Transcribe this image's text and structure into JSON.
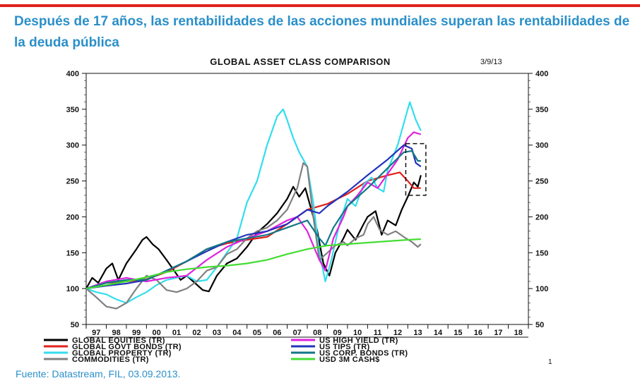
{
  "page": {
    "headline": "Después de 17 años, las rentabilidades de las acciones mundiales superan las rentabilidades de la deuda pública",
    "source": "Fuente: Datastream, FIL, 03.09.2013.",
    "page_number": "1",
    "accent_color": "#e0201b",
    "headline_color": "#2a8fc9"
  },
  "chart_data": {
    "type": "line",
    "title": "GLOBAL ASSET CLASS COMPARISON",
    "date_label": "3/9/13",
    "xlabel": "",
    "ylabel": "",
    "xlim": [
      1997,
      2019
    ],
    "ylim": [
      50,
      400
    ],
    "x_ticks": [
      "97",
      "98",
      "99",
      "00",
      "01",
      "02",
      "03",
      "04",
      "05",
      "06",
      "07",
      "08",
      "09",
      "10",
      "11",
      "12",
      "13",
      "14",
      "15",
      "16",
      "17",
      "18"
    ],
    "y_ticks": [
      50,
      100,
      150,
      200,
      250,
      300,
      350,
      400
    ],
    "grid": false,
    "legend_position": "bottom",
    "highlight_box": {
      "x": [
        2012.9,
        2013.9
      ],
      "y": [
        230,
        302
      ],
      "style": "dashed"
    },
    "series": [
      {
        "name": "GLOBAL EQUITIES (TR)",
        "color": "#000000",
        "points": [
          [
            1997,
            100
          ],
          [
            1997.3,
            115
          ],
          [
            1997.6,
            108
          ],
          [
            1998,
            128
          ],
          [
            1998.3,
            135
          ],
          [
            1998.6,
            112
          ],
          [
            1999,
            135
          ],
          [
            1999.5,
            155
          ],
          [
            1999.8,
            168
          ],
          [
            2000,
            172
          ],
          [
            2000.3,
            162
          ],
          [
            2000.6,
            155
          ],
          [
            2001,
            140
          ],
          [
            2001.3,
            128
          ],
          [
            2001.7,
            112
          ],
          [
            2002,
            118
          ],
          [
            2002.4,
            108
          ],
          [
            2002.8,
            98
          ],
          [
            2003.1,
            96
          ],
          [
            2003.5,
            118
          ],
          [
            2004,
            135
          ],
          [
            2004.5,
            142
          ],
          [
            2005,
            158
          ],
          [
            2005.5,
            178
          ],
          [
            2006,
            190
          ],
          [
            2006.5,
            205
          ],
          [
            2007,
            225
          ],
          [
            2007.3,
            242
          ],
          [
            2007.6,
            228
          ],
          [
            2007.9,
            240
          ],
          [
            2008.2,
            210
          ],
          [
            2008.5,
            180
          ],
          [
            2008.8,
            135
          ],
          [
            2009.1,
            118
          ],
          [
            2009.4,
            150
          ],
          [
            2009.8,
            170
          ],
          [
            2010,
            182
          ],
          [
            2010.4,
            168
          ],
          [
            2010.8,
            190
          ],
          [
            2011,
            200
          ],
          [
            2011.4,
            208
          ],
          [
            2011.7,
            175
          ],
          [
            2012,
            195
          ],
          [
            2012.4,
            188
          ],
          [
            2012.7,
            210
          ],
          [
            2013,
            228
          ],
          [
            2013.3,
            248
          ],
          [
            2013.5,
            242
          ],
          [
            2013.65,
            258
          ]
        ]
      },
      {
        "name": "GLOBAL GOVT BONDS (TR)",
        "color": "#e0201b",
        "points": [
          [
            1997,
            100
          ],
          [
            1998,
            108
          ],
          [
            1999,
            110
          ],
          [
            2000,
            113
          ],
          [
            2001,
            123
          ],
          [
            2002,
            138
          ],
          [
            2003,
            155
          ],
          [
            2004,
            163
          ],
          [
            2005,
            168
          ],
          [
            2006,
            172
          ],
          [
            2007,
            190
          ],
          [
            2008,
            210
          ],
          [
            2009,
            218
          ],
          [
            2010,
            232
          ],
          [
            2011,
            250
          ],
          [
            2012,
            258
          ],
          [
            2012.6,
            262
          ],
          [
            2013,
            250
          ],
          [
            2013.3,
            240
          ],
          [
            2013.65,
            240
          ]
        ]
      },
      {
        "name": "GLOBAL PROPERTY (TR)",
        "color": "#33ddee",
        "points": [
          [
            1997,
            100
          ],
          [
            1997.5,
            95
          ],
          [
            1998,
            92
          ],
          [
            1998.5,
            85
          ],
          [
            1999,
            80
          ],
          [
            1999.5,
            88
          ],
          [
            2000,
            95
          ],
          [
            2000.5,
            105
          ],
          [
            2001,
            112
          ],
          [
            2002,
            118
          ],
          [
            2002.5,
            110
          ],
          [
            2003,
            112
          ],
          [
            2003.5,
            130
          ],
          [
            2004,
            150
          ],
          [
            2004.5,
            170
          ],
          [
            2005,
            220
          ],
          [
            2005.5,
            250
          ],
          [
            2006,
            300
          ],
          [
            2006.5,
            340
          ],
          [
            2006.8,
            350
          ],
          [
            2007,
            335
          ],
          [
            2007.3,
            310
          ],
          [
            2007.6,
            290
          ],
          [
            2008,
            270
          ],
          [
            2008.3,
            220
          ],
          [
            2008.6,
            150
          ],
          [
            2008.9,
            110
          ],
          [
            2009.2,
            140
          ],
          [
            2009.6,
            190
          ],
          [
            2010,
            225
          ],
          [
            2010.4,
            215
          ],
          [
            2010.8,
            245
          ],
          [
            2011.2,
            255
          ],
          [
            2011.5,
            240
          ],
          [
            2011.8,
            235
          ],
          [
            2012,
            265
          ],
          [
            2012.5,
            300
          ],
          [
            2012.9,
            340
          ],
          [
            2013.1,
            360
          ],
          [
            2013.4,
            335
          ],
          [
            2013.65,
            320
          ]
        ]
      },
      {
        "name": "COMMODITIES (TR)",
        "color": "#808080",
        "points": [
          [
            1997,
            100
          ],
          [
            1997.5,
            88
          ],
          [
            1998,
            75
          ],
          [
            1998.5,
            72
          ],
          [
            1999,
            80
          ],
          [
            1999.5,
            100
          ],
          [
            2000,
            118
          ],
          [
            2000.5,
            112
          ],
          [
            2001,
            98
          ],
          [
            2001.5,
            95
          ],
          [
            2002,
            100
          ],
          [
            2002.5,
            110
          ],
          [
            2003,
            125
          ],
          [
            2003.5,
            130
          ],
          [
            2004,
            148
          ],
          [
            2004.5,
            155
          ],
          [
            2005,
            170
          ],
          [
            2005.5,
            180
          ],
          [
            2006,
            185
          ],
          [
            2006.5,
            195
          ],
          [
            2007,
            210
          ],
          [
            2007.5,
            240
          ],
          [
            2007.8,
            275
          ],
          [
            2008,
            270
          ],
          [
            2008.3,
            200
          ],
          [
            2008.6,
            140
          ],
          [
            2009,
            150
          ],
          [
            2009.4,
            160
          ],
          [
            2009.8,
            165
          ],
          [
            2010,
            160
          ],
          [
            2010.4,
            170
          ],
          [
            2010.8,
            175
          ],
          [
            2011,
            190
          ],
          [
            2011.3,
            200
          ],
          [
            2011.6,
            182
          ],
          [
            2012,
            175
          ],
          [
            2012.4,
            180
          ],
          [
            2012.8,
            172
          ],
          [
            2013.2,
            165
          ],
          [
            2013.5,
            158
          ],
          [
            2013.65,
            162
          ]
        ]
      },
      {
        "name": "US HIGH YIELD (TR)",
        "color": "#dd22dd",
        "points": [
          [
            1997,
            100
          ],
          [
            1998,
            110
          ],
          [
            1999,
            115
          ],
          [
            2000,
            110
          ],
          [
            2001,
            115
          ],
          [
            2002,
            118
          ],
          [
            2003,
            140
          ],
          [
            2004,
            158
          ],
          [
            2005,
            170
          ],
          [
            2006,
            180
          ],
          [
            2007,
            195
          ],
          [
            2007.5,
            200
          ],
          [
            2008,
            180
          ],
          [
            2008.6,
            140
          ],
          [
            2008.9,
            125
          ],
          [
            2009.3,
            170
          ],
          [
            2009.8,
            200
          ],
          [
            2010,
            215
          ],
          [
            2010.5,
            230
          ],
          [
            2011,
            248
          ],
          [
            2011.5,
            240
          ],
          [
            2012,
            260
          ],
          [
            2012.5,
            280
          ],
          [
            2013,
            310
          ],
          [
            2013.3,
            318
          ],
          [
            2013.65,
            315
          ]
        ]
      },
      {
        "name": "US TIPS (TR)",
        "color": "#2233bb",
        "points": [
          [
            1997,
            100
          ],
          [
            1998,
            104
          ],
          [
            1999,
            107
          ],
          [
            2000,
            112
          ],
          [
            2001,
            125
          ],
          [
            2002,
            138
          ],
          [
            2003,
            152
          ],
          [
            2004,
            165
          ],
          [
            2005,
            175
          ],
          [
            2006,
            180
          ],
          [
            2007,
            190
          ],
          [
            2008,
            210
          ],
          [
            2008.6,
            205
          ],
          [
            2009,
            215
          ],
          [
            2010,
            235
          ],
          [
            2011,
            258
          ],
          [
            2012,
            280
          ],
          [
            2012.8,
            300
          ],
          [
            2013.2,
            295
          ],
          [
            2013.4,
            275
          ],
          [
            2013.65,
            270
          ]
        ]
      },
      {
        "name": "US CORP. BONDS (TR)",
        "color": "#117788",
        "points": [
          [
            1997,
            100
          ],
          [
            1998,
            108
          ],
          [
            1999,
            112
          ],
          [
            2000,
            112
          ],
          [
            2001,
            125
          ],
          [
            2002,
            138
          ],
          [
            2003,
            155
          ],
          [
            2004,
            165
          ],
          [
            2005,
            170
          ],
          [
            2006,
            175
          ],
          [
            2007,
            185
          ],
          [
            2008,
            195
          ],
          [
            2008.6,
            170
          ],
          [
            2008.9,
            160
          ],
          [
            2009.3,
            185
          ],
          [
            2010,
            215
          ],
          [
            2011,
            240
          ],
          [
            2012,
            268
          ],
          [
            2012.8,
            290
          ],
          [
            2013.2,
            292
          ],
          [
            2013.5,
            278
          ],
          [
            2013.65,
            278
          ]
        ]
      },
      {
        "name": "USD 3M CASH$",
        "color": "#44dd33",
        "points": [
          [
            1997,
            100
          ],
          [
            1998,
            105
          ],
          [
            1999,
            110
          ],
          [
            2000,
            116
          ],
          [
            2001,
            123
          ],
          [
            2002,
            127
          ],
          [
            2003,
            130
          ],
          [
            2004,
            132
          ],
          [
            2005,
            135
          ],
          [
            2006,
            140
          ],
          [
            2007,
            148
          ],
          [
            2008,
            155
          ],
          [
            2009,
            160
          ],
          [
            2010,
            162
          ],
          [
            2011,
            164
          ],
          [
            2012,
            166
          ],
          [
            2013,
            168
          ],
          [
            2013.65,
            169
          ]
        ]
      }
    ]
  }
}
